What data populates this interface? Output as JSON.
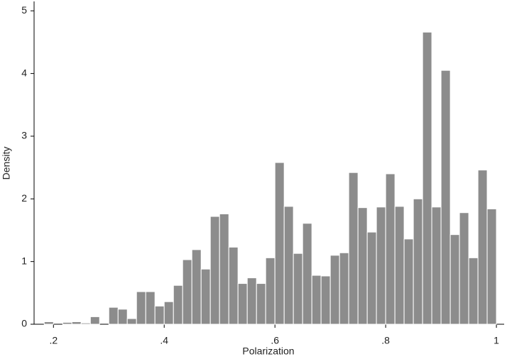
{
  "chart_data": {
    "type": "histogram",
    "x_label": "Polarization",
    "y_label": "Density",
    "bins": [
      0.1833,
      0.2,
      0.2167,
      0.2333,
      0.25,
      0.2667,
      0.2833,
      0.3,
      0.3167,
      0.3333,
      0.35,
      0.3667,
      0.3833,
      0.4,
      0.4167,
      0.4333,
      0.45,
      0.4667,
      0.4833,
      0.5,
      0.5167,
      0.5333,
      0.55,
      0.5667,
      0.5833,
      0.6,
      0.6167,
      0.6333,
      0.65,
      0.6667,
      0.6833,
      0.7,
      0.7167,
      0.7333,
      0.75,
      0.7667,
      0.7833,
      0.8,
      0.8167,
      0.8333,
      0.85,
      0.8667,
      0.8833,
      0.9,
      0.9167,
      0.9333,
      0.95,
      0.9667,
      0.9833,
      1
    ],
    "counts": [
      0.04,
      0,
      0.03,
      0.04,
      0.02,
      0.12,
      0,
      0.27,
      0.24,
      0.09,
      0.52,
      0.52,
      0.29,
      0.36,
      0.62,
      1.03,
      1.19,
      0.88,
      1.72,
      1.76,
      1.23,
      0.65,
      0.74,
      0.65,
      1.06,
      2.58,
      1.88,
      1.13,
      1.61,
      0.78,
      0.77,
      1.1,
      1.14,
      2.42,
      1.86,
      1.47,
      1.87,
      2.4,
      1.88,
      1.36,
      2.0,
      4.66,
      1.87,
      4.05,
      1.43,
      1.78,
      1.06,
      2.46,
      1.84
    ],
    "color": "#8c8c8c",
    "xlim": [
      0.165,
      1.014
    ],
    "ylim": [
      0,
      5.15
    ],
    "xticks": [
      {
        "value": 0.2,
        "label": ".2"
      },
      {
        "value": 0.4,
        "label": ".4"
      },
      {
        "value": 0.6,
        "label": ".6"
      },
      {
        "value": 0.8,
        "label": ".8"
      },
      1
    ],
    "yticks": [
      0,
      1,
      2,
      3,
      4,
      5
    ]
  }
}
